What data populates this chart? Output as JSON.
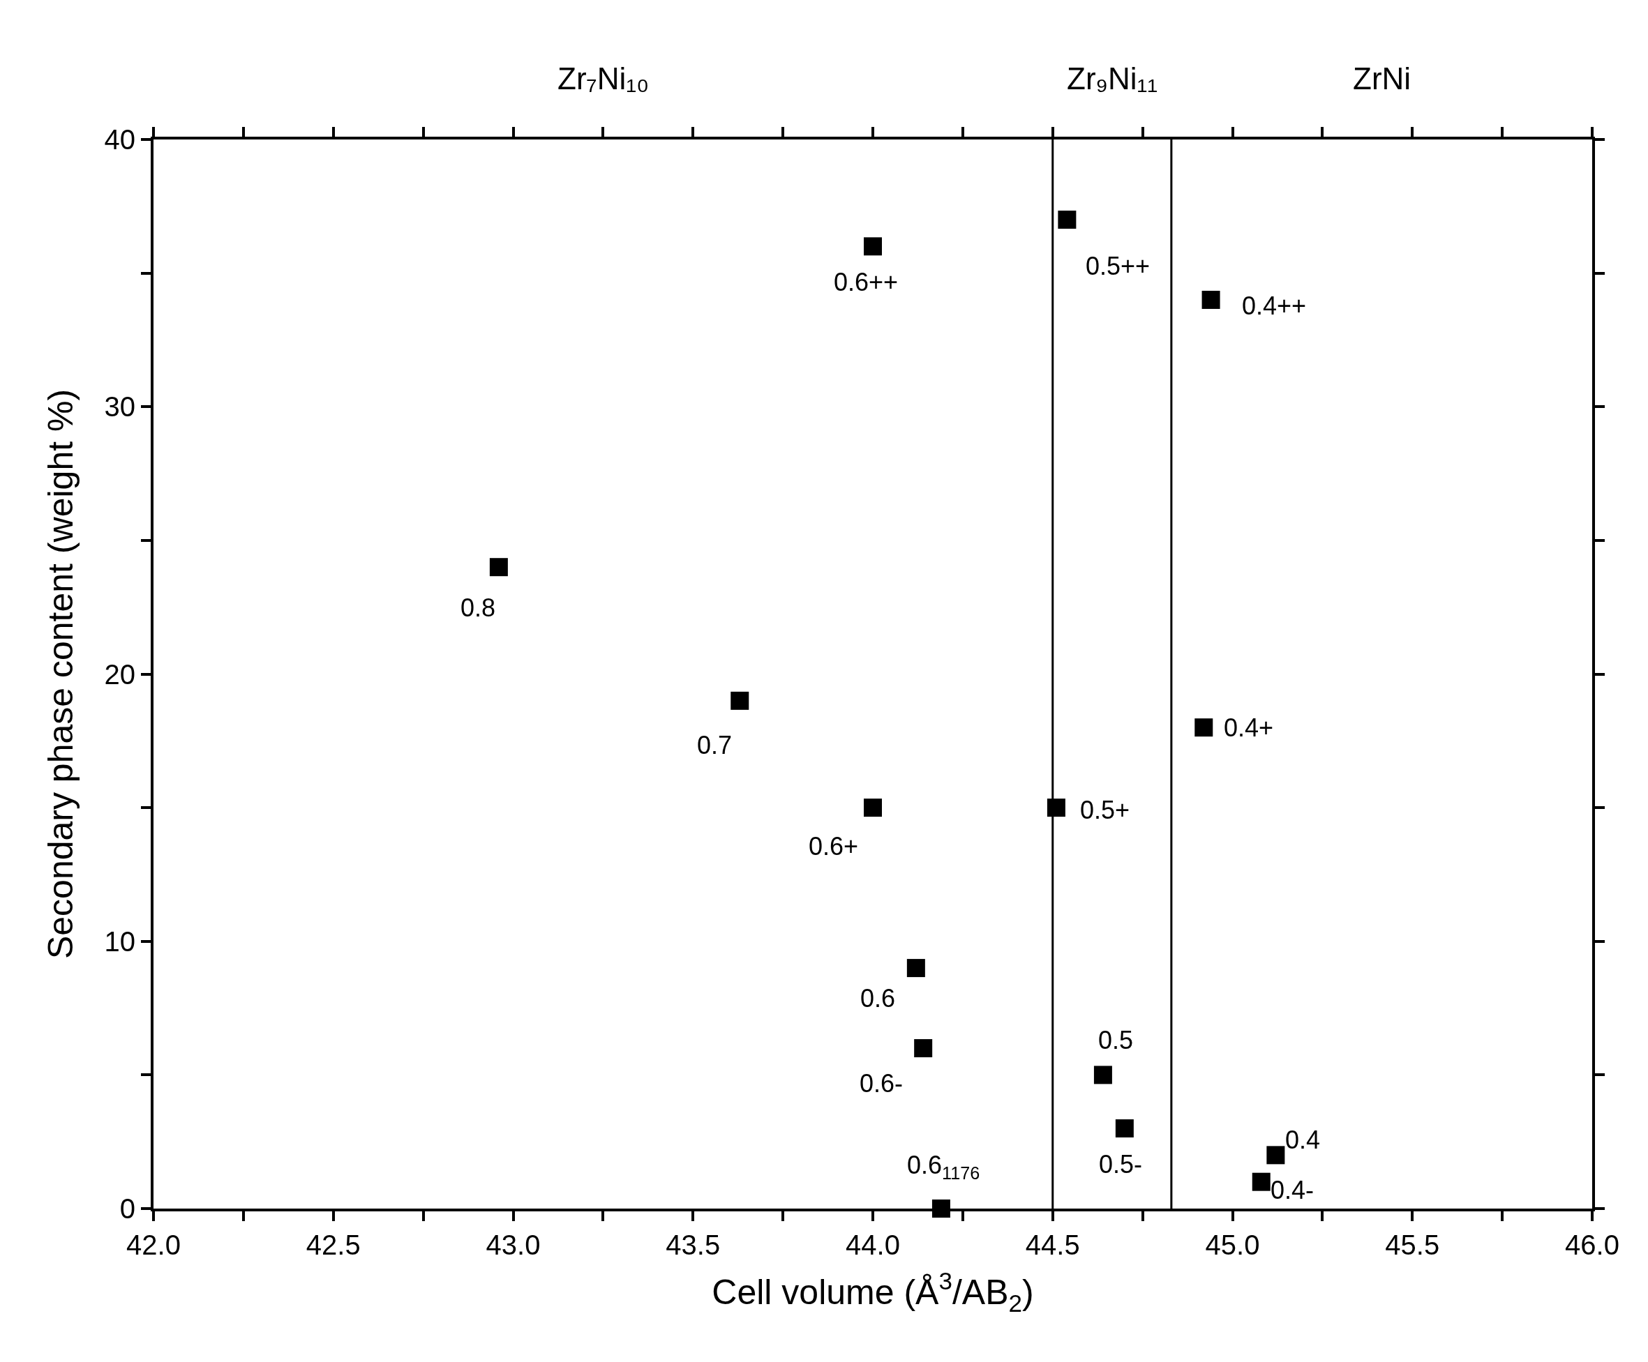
{
  "chart_data": {
    "type": "scatter",
    "xlabel": "Cell volume (Å$^{3}$/AB$_{2}$)",
    "ylabel": "Secondary phase content (weight %)",
    "x": [
      42.96,
      43.63,
      44.0,
      44.0,
      44.12,
      44.14,
      44.19,
      44.54,
      44.51,
      44.64,
      44.7,
      44.94,
      44.92,
      45.12,
      45.08
    ],
    "series": [
      {
        "color": "#000000",
        "values": [
          24,
          19,
          36,
          15,
          9,
          6,
          0,
          37,
          15,
          5,
          3,
          34,
          18,
          2,
          1
        ]
      }
    ],
    "marker": "square",
    "xlim": [
      42.0,
      46.0
    ],
    "xticks": [
      {
        "value": 42.0,
        "label": "42.0"
      },
      {
        "value": 42.25,
        "label": null
      },
      {
        "value": 42.5,
        "label": "42.5"
      },
      {
        "value": 42.75,
        "label": null
      },
      {
        "value": 43.0,
        "label": "43.0"
      },
      {
        "value": 43.25,
        "label": null
      },
      {
        "value": 43.5,
        "label": "43.5"
      },
      {
        "value": 43.75,
        "label": null
      },
      {
        "value": 44.0,
        "label": "44.0"
      },
      {
        "value": 44.25,
        "label": null
      },
      {
        "value": 44.5,
        "label": "44.5"
      },
      {
        "value": 44.75,
        "label": null
      },
      {
        "value": 45.0,
        "label": "45.0"
      },
      {
        "value": 45.25,
        "label": null
      },
      {
        "value": 45.5,
        "label": "45.5"
      },
      {
        "value": 45.75,
        "label": null
      },
      {
        "value": 46.0,
        "label": "46.0"
      }
    ],
    "ylim": [
      0,
      40
    ],
    "yticks": [
      0,
      {
        "value": 5,
        "label": null
      },
      10,
      {
        "value": 15,
        "label": null
      },
      20,
      {
        "value": 25,
        "label": null
      },
      30,
      {
        "value": 35,
        "label": null
      },
      40
    ],
    "ref_lines": [
      {
        "axis": "x",
        "value": 44.5,
        "color": "#000000"
      },
      {
        "axis": "x",
        "value": 44.83,
        "color": "#000000"
      }
    ],
    "annotations": [
      {
        "text": "0.8",
        "x": 42.96,
        "y": 24
      },
      {
        "text": "0.7",
        "x": 43.63,
        "y": 19
      },
      {
        "text": "0.6++",
        "x": 44.0,
        "y": 36
      },
      {
        "text": "0.6+",
        "x": 44.0,
        "y": 15
      },
      {
        "text": "0.6",
        "x": 44.12,
        "y": 9
      },
      {
        "text": "0.6-",
        "x": 44.14,
        "y": 6
      },
      {
        "text": "0.6$_{1176}$",
        "x": 44.19,
        "y": 0
      },
      {
        "text": "0.5++",
        "x": 44.54,
        "y": 37
      },
      {
        "text": "0.5+",
        "x": 44.51,
        "y": 15
      },
      {
        "text": "0.5",
        "x": 44.64,
        "y": 5
      },
      {
        "text": "0.5-",
        "x": 44.7,
        "y": 3
      },
      {
        "text": "0.4++",
        "x": 44.94,
        "y": 34
      },
      {
        "text": "0.4+",
        "x": 44.92,
        "y": 18
      },
      {
        "text": "0.4",
        "x": 45.12,
        "y": 2
      },
      {
        "text": "0.4-",
        "x": 45.08,
        "y": 1
      },
      "Zr₇Ni₁₀",
      "Zr₉Ni₁₁",
      "ZrNi"
    ]
  }
}
